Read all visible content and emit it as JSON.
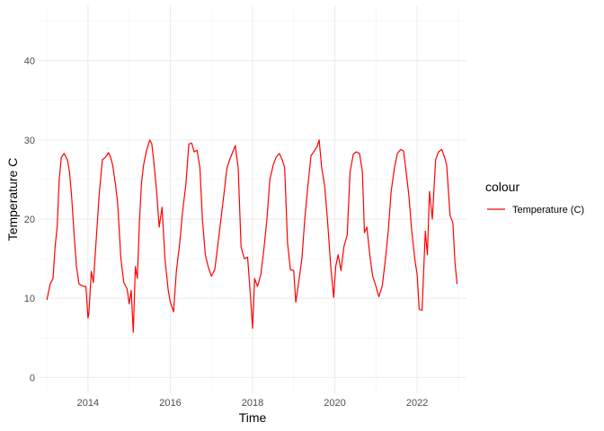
{
  "chart_data": {
    "type": "line",
    "title": "",
    "xlabel": "Time",
    "ylabel": "Temperature C",
    "xlim": [
      2012.8,
      2023.2
    ],
    "ylim": [
      -2,
      47
    ],
    "x_ticks": [
      2014,
      2016,
      2018,
      2020,
      2022
    ],
    "y_ticks": [
      0,
      10,
      20,
      30,
      40
    ],
    "grid": true,
    "legend": {
      "title": "colour",
      "placement": "right"
    },
    "series": [
      {
        "name": "Temperature (C)",
        "color": "#ff0000",
        "x": [
          2013.0,
          2013.08,
          2013.15,
          2013.2,
          2013.25,
          2013.3,
          2013.35,
          2013.42,
          2013.5,
          2013.55,
          2013.6,
          2013.67,
          2013.72,
          2013.78,
          2013.85,
          2013.9,
          2013.95,
          2014.0,
          2014.02,
          2014.08,
          2014.13,
          2014.2,
          2014.27,
          2014.35,
          2014.42,
          2014.5,
          2014.55,
          2014.6,
          2014.67,
          2014.72,
          2014.8,
          2014.87,
          2014.95,
          2015.0,
          2015.05,
          2015.1,
          2015.15,
          2015.2,
          2015.25,
          2015.3,
          2015.35,
          2015.42,
          2015.5,
          2015.55,
          2015.6,
          2015.67,
          2015.73,
          2015.8,
          2015.87,
          2015.95,
          2016.0,
          2016.08,
          2016.15,
          2016.23,
          2016.3,
          2016.38,
          2016.45,
          2016.52,
          2016.58,
          2016.65,
          2016.72,
          2016.78,
          2016.85,
          2016.92,
          2017.0,
          2017.08,
          2017.15,
          2017.22,
          2017.3,
          2017.38,
          2017.45,
          2017.52,
          2017.58,
          2017.65,
          2017.72,
          2017.8,
          2017.88,
          2017.95,
          2018.0,
          2018.05,
          2018.12,
          2018.2,
          2018.27,
          2018.35,
          2018.42,
          2018.5,
          2018.57,
          2018.65,
          2018.72,
          2018.78,
          2018.85,
          2018.92,
          2019.0,
          2019.05,
          2019.12,
          2019.2,
          2019.27,
          2019.35,
          2019.42,
          2019.5,
          2019.57,
          2019.62,
          2019.68,
          2019.75,
          2019.82,
          2019.9,
          2019.97,
          2020.02,
          2020.08,
          2020.15,
          2020.22,
          2020.3,
          2020.37,
          2020.45,
          2020.52,
          2020.6,
          2020.67,
          2020.72,
          2020.78,
          2020.85,
          2020.92,
          2021.0,
          2021.07,
          2021.15,
          2021.22,
          2021.3,
          2021.37,
          2021.45,
          2021.52,
          2021.6,
          2021.67,
          2021.72,
          2021.8,
          2021.87,
          2021.95,
          2022.0,
          2022.05,
          2022.12,
          2022.2,
          2022.25,
          2022.3,
          2022.37,
          2022.45,
          2022.52,
          2022.6,
          2022.67,
          2022.72,
          2022.8,
          2022.87,
          2022.92,
          2022.97
        ],
        "y": [
          9.8,
          11.8,
          12.5,
          16.5,
          19,
          25,
          27.8,
          28.3,
          27.5,
          26,
          23,
          17.5,
          14,
          11.8,
          11.6,
          11.5,
          11.5,
          7.5,
          8,
          13.4,
          12,
          17.5,
          23,
          27.5,
          27.8,
          28.4,
          27.8,
          26.8,
          24.3,
          22,
          15,
          12,
          11.2,
          9.3,
          11,
          5.7,
          14,
          12.5,
          19.5,
          24.5,
          26.8,
          28.6,
          30,
          29.5,
          27.2,
          23.3,
          19,
          21.5,
          15,
          11,
          9.5,
          8.3,
          13.5,
          17,
          21,
          24.5,
          29.5,
          29.6,
          28.5,
          28.7,
          26.5,
          20,
          15.5,
          14,
          12.8,
          13.6,
          16.5,
          19.5,
          23,
          26.5,
          27.6,
          28.5,
          29.3,
          26.5,
          16.5,
          15,
          15.2,
          10.2,
          6.2,
          12.5,
          11.5,
          13,
          16,
          20,
          25,
          26.8,
          27.8,
          28.3,
          27.5,
          26.5,
          17,
          13.6,
          13.5,
          9.5,
          12,
          15,
          20,
          24.5,
          28,
          28.6,
          29.2,
          30,
          26.5,
          24.3,
          20,
          14,
          10.1,
          14,
          15.5,
          13.5,
          16.5,
          18,
          26,
          28.2,
          28.5,
          28.3,
          26,
          18.3,
          19,
          15.5,
          12.8,
          11.5,
          10.2,
          11.5,
          14.5,
          18.5,
          23.5,
          26.5,
          28.3,
          28.8,
          28.6,
          26.5,
          23,
          18.5,
          14.7,
          13,
          8.6,
          8.5,
          18.5,
          15.5,
          23.5,
          20,
          27.5,
          28.5,
          28.8,
          27.8,
          26.8,
          20.5,
          19.5,
          14.5,
          11.8
        ]
      }
    ]
  }
}
